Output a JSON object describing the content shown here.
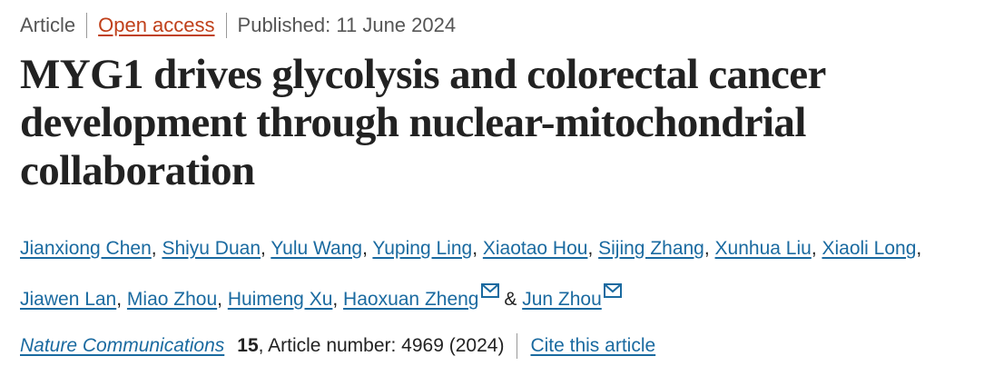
{
  "meta": {
    "type": "Article",
    "access": "Open access",
    "published": "Published: 11 June 2024"
  },
  "title": "MYG1 drives glycolysis and colorectal cancer development through nuclear-mitochondrial collaboration",
  "authors": [
    "Jianxiong Chen",
    "Shiyu Duan",
    "Yulu Wang",
    "Yuping Ling",
    "Xiaotao Hou",
    "Sijing Zhang",
    "Xunhua Liu",
    "Xiaoli Long",
    "Jiawen Lan",
    "Miao Zhou",
    "Huimeng Xu",
    "Haoxuan Zheng",
    "Jun Zhou"
  ],
  "authors_ampersand": "&",
  "journal": {
    "name": "Nature Communications",
    "volume": "15",
    "article": ", Article number: 4969 (2024)",
    "cite": "Cite this article"
  },
  "colors": {
    "link": "#1a6aa0",
    "open_access": "#c0401a"
  }
}
